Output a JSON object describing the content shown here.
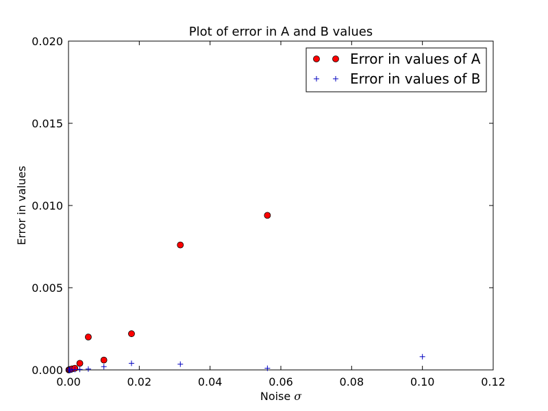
{
  "chart_data": {
    "type": "scatter",
    "title": "Plot of error in A and B values",
    "xlabel": "Noise",
    "xlabel_symbol": "σ",
    "ylabel": "Error in values",
    "xlim": [
      0,
      0.12
    ],
    "ylim": [
      0,
      0.02
    ],
    "x_ticks": [
      "0.00",
      "0.02",
      "0.04",
      "0.06",
      "0.08",
      "0.10",
      "0.12"
    ],
    "y_ticks": [
      "0.000",
      "0.005",
      "0.010",
      "0.015",
      "0.020"
    ],
    "grid": false,
    "legend_position": "top-right",
    "series": [
      {
        "name": "Error in values of A",
        "marker": "circle",
        "color": "#ff0000",
        "edge_color": "#000000",
        "x": [
          0.0001,
          0.0003,
          0.0006,
          0.001,
          0.0018,
          0.0032,
          0.0056,
          0.01,
          0.0178,
          0.0316,
          0.0562
        ],
        "y": [
          0.0,
          2e-05,
          3e-05,
          6e-05,
          0.0001,
          0.0004,
          0.002,
          0.0006,
          0.0022,
          0.0076,
          0.0094
        ]
      },
      {
        "name": "Error in values of B",
        "marker": "plus",
        "color": "#0000bf",
        "x": [
          0.0001,
          0.0003,
          0.0006,
          0.001,
          0.0018,
          0.0032,
          0.0056,
          0.01,
          0.0178,
          0.0316,
          0.0562,
          0.1
        ],
        "y": [
          0.0,
          0.0,
          0.0,
          1e-05,
          2e-05,
          3e-05,
          5e-05,
          0.0002,
          0.0004,
          0.00035,
          0.0001,
          0.0008
        ]
      }
    ]
  }
}
